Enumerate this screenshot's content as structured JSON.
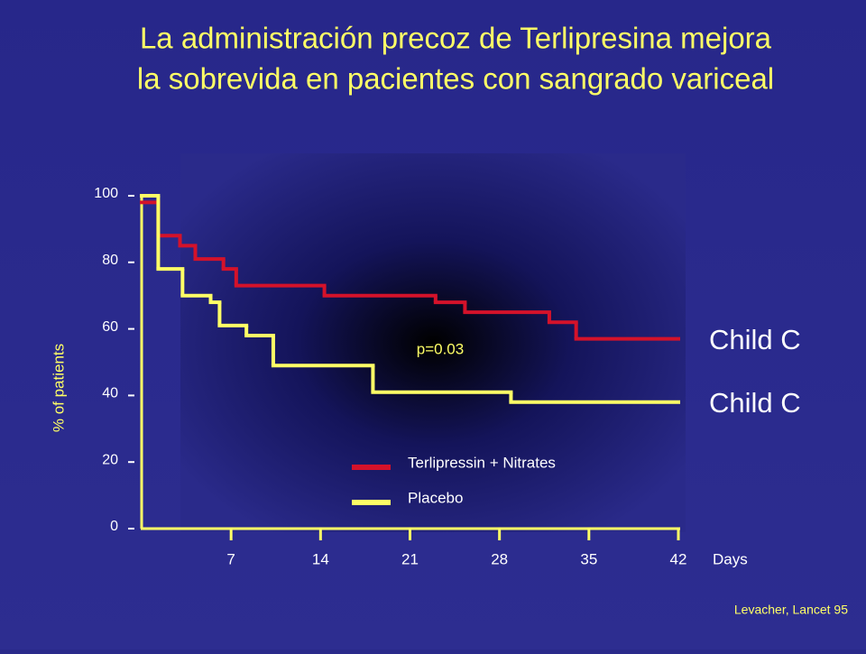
{
  "chart_data": {
    "type": "step",
    "title": [
      "La administración precoz de Terlipresina mejora",
      "la sobrevida en pacientes con sangrado variceal"
    ],
    "ylabel": "% of patients",
    "xlabel": "Days",
    "xlim": [
      0,
      42
    ],
    "xticks": [
      7,
      14,
      21,
      28,
      35,
      42
    ],
    "ylim": [
      0,
      100
    ],
    "yticks": [
      0,
      20,
      40,
      60,
      80,
      100
    ],
    "series": [
      {
        "name": "Terlipressin + Nitrates",
        "color": "#d4122a",
        "label": "Child C",
        "x": [
          0,
          1.3,
          3,
          4.2,
          6.4,
          7.4,
          14.3,
          23,
          25.3,
          31.9,
          34
        ],
        "values": [
          98,
          88,
          85,
          81,
          78,
          73,
          70,
          68,
          65,
          62,
          57
        ]
      },
      {
        "name": "Placebo",
        "color": "#ffff66",
        "label": "Child C",
        "x": [
          0,
          1.3,
          3.2,
          5.4,
          6.1,
          8.2,
          10.3,
          18.1,
          28.9
        ],
        "values": [
          100,
          78,
          70,
          68,
          61,
          58,
          49,
          41,
          38
        ]
      }
    ],
    "annotation": "p=0.03",
    "source": "Levacher, Lancet 95"
  }
}
